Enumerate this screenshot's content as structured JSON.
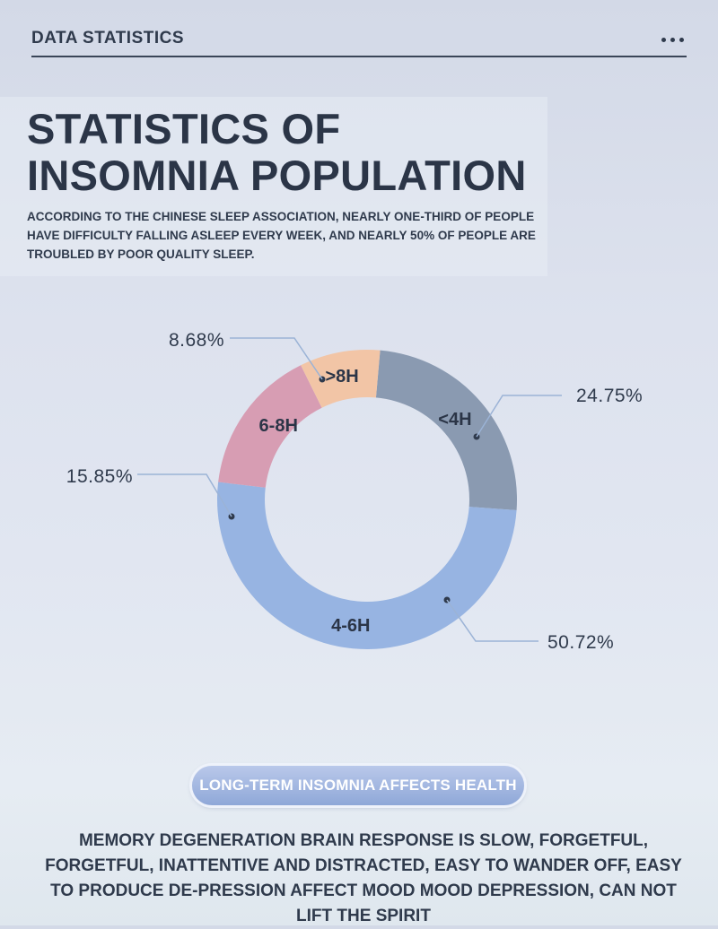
{
  "header": {
    "title": "DATA STATISTICS",
    "menu_icon": "more-dots-icon"
  },
  "title_line1": "STATISTICS OF",
  "title_line2": "INSOMNIA POPULATION",
  "subtitle": "ACCORDING TO THE CHINESE SLEEP ASSOCIATION, NEARLY ONE-THIRD OF PEOPLE HAVE DIFFICULTY FALLING ASLEEP EVERY WEEK, AND NEARLY 50% OF PEOPLE ARE TROUBLED BY POOR QUALITY SLEEP.",
  "chart_data": {
    "type": "pie",
    "style": "donut",
    "slices": [
      {
        "label": "<4H",
        "value": 24.75,
        "value_label": "24.75%",
        "color": "#8a9ab1"
      },
      {
        "label": "4-6H",
        "value": 50.72,
        "value_label": "50.72%",
        "color": "#97b4e2"
      },
      {
        "label": "6-8H",
        "value": 15.85,
        "value_label": "15.85%",
        "color": "#d79db3"
      },
      {
        "label": ">8H",
        "value": 8.68,
        "value_label": "8.68%",
        "color": "#f2c5a6"
      }
    ]
  },
  "callout": {
    "label": "LONG-TERM INSOMNIA AFFECTS HEALTH"
  },
  "body_text": "MEMORY DEGENERATION BRAIN RESPONSE IS SLOW, FORGETFUL, FORGETFUL, INATTENTIVE AND  DISTRACTED, EASY TO WANDER OFF, EASY TO PRODUCE DE-PRESSION AFFECT MOOD MOOD DEPRESSION, CAN NOT LIFT THE SPIRIT"
}
